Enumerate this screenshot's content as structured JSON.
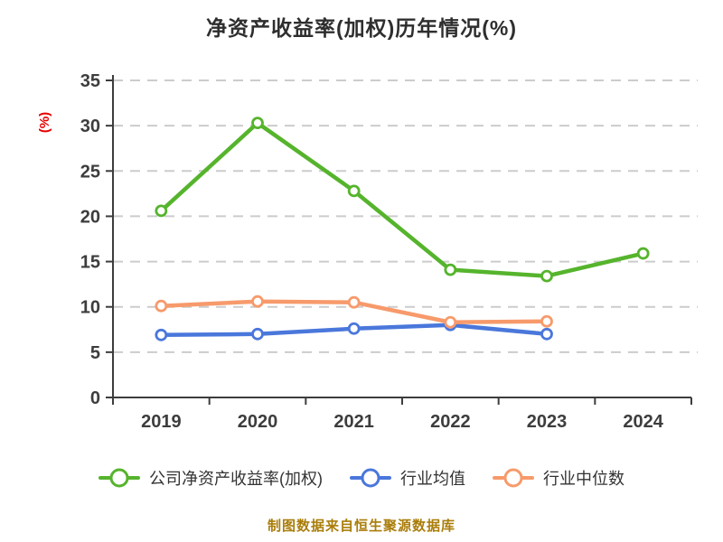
{
  "title": "净资产收益率(加权)历年情况(%)",
  "ylabel": "(%)",
  "footer": "制图数据来自恒生聚源数据库",
  "legend": {
    "items": [
      {
        "label": "公司净资产收益率(加权)",
        "color": "#55b42c"
      },
      {
        "label": "行业均值",
        "color": "#4a77db"
      },
      {
        "label": "行业中位数",
        "color": "#f79a6b"
      }
    ]
  },
  "chart_data": {
    "type": "line",
    "title": "净资产收益率(加权)历年情况(%)",
    "xlabel": "",
    "ylabel": "(%)",
    "categories": [
      "2019",
      "2020",
      "2021",
      "2022",
      "2023",
      "2024"
    ],
    "series": [
      {
        "name": "公司净资产收益率(加权)",
        "color": "#55b42c",
        "z": 3,
        "values": [
          20.6,
          30.3,
          22.8,
          14.1,
          13.4,
          15.9
        ]
      },
      {
        "name": "行业均值",
        "color": "#4a77db",
        "z": 1,
        "values": [
          6.9,
          7.0,
          7.6,
          8.0,
          7.0,
          null
        ]
      },
      {
        "name": "行业中位数",
        "color": "#f79a6b",
        "z": 2,
        "values": [
          10.1,
          10.6,
          10.5,
          8.3,
          8.4,
          null
        ]
      }
    ],
    "ylim": [
      0,
      35
    ],
    "yticks": [
      0,
      5,
      10,
      15,
      20,
      25,
      30,
      35
    ],
    "grid": "horizontal-dashed",
    "legend_position": "bottom"
  },
  "colors": {
    "background": "#ffffff",
    "axis": "#3d3d3d",
    "tick_label": "#3d3d3d",
    "gridline": "#cccccc",
    "title": "#2e2e2e",
    "ylabel": "#e60000",
    "footer": "#aa7d0a"
  }
}
